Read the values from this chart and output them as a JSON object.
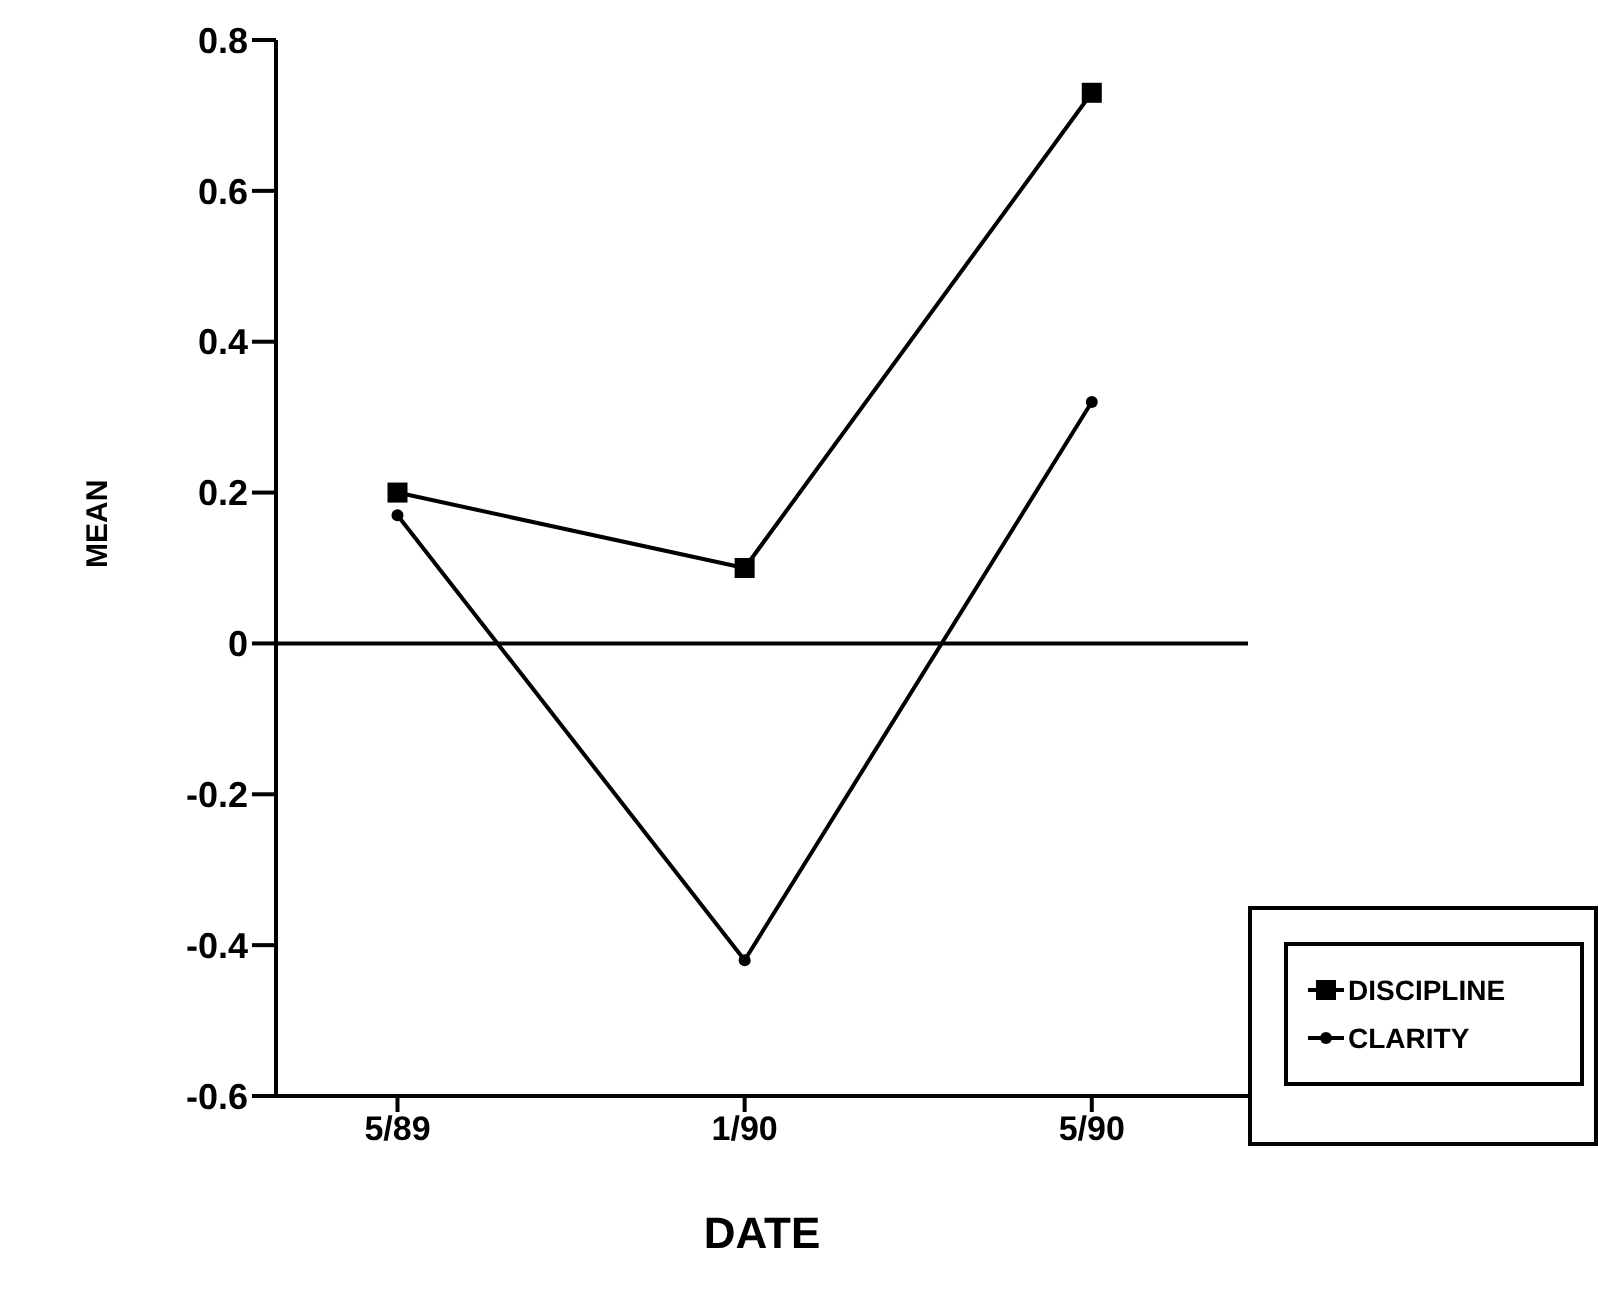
{
  "chart_data": {
    "type": "line",
    "xlabel": "DATE",
    "ylabel": "MEAN",
    "categories": [
      "5/89",
      "1/90",
      "5/90"
    ],
    "series": [
      {
        "name": "DISCIPLINE",
        "color": "#000000",
        "values": [
          0.2,
          0.1,
          0.73
        ],
        "marker": "square"
      },
      {
        "name": "CLARITY",
        "color": "#000000",
        "values": [
          0.17,
          -0.42,
          0.32
        ],
        "marker": "circle"
      }
    ],
    "ylim": [
      -0.6,
      0.8
    ],
    "yticks": [
      -0.6,
      -0.4,
      -0.2,
      0,
      0.2,
      0.4,
      0.6,
      0.8
    ],
    "ref_lines": [
      {
        "axis": "y",
        "value": 0,
        "color": "#000000"
      }
    ],
    "grid": false,
    "legend": "bottom right",
    "line_style": "solid"
  }
}
